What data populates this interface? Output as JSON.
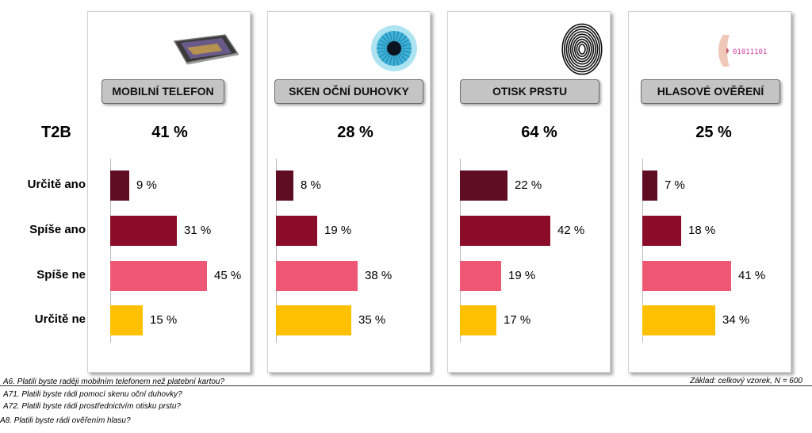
{
  "chart_data": {
    "type": "bar",
    "orientation": "horizontal",
    "row_label_t2b": "T2B",
    "categories": [
      "Určitě ano",
      "Spíše ano",
      "Spíše ne",
      "Určitě ne"
    ],
    "category_colors": [
      "#5e0d22",
      "#8a0c28",
      "#ef5874",
      "#ffc000"
    ],
    "panels": [
      {
        "title": "MOBILNÍ TELEFON",
        "icon": "smartphone-icon",
        "t2b": "41 %",
        "values": [
          9,
          31,
          45,
          15
        ]
      },
      {
        "title": "SKEN OČNÍ DUHOVKY",
        "icon": "eye-iris-icon",
        "t2b": "28 %",
        "values": [
          8,
          19,
          38,
          35
        ]
      },
      {
        "title": "OTISK PRSTU",
        "icon": "fingerprint-icon",
        "t2b": "64 %",
        "values": [
          22,
          42,
          19,
          17
        ]
      },
      {
        "title": "HLASOVÉ OVĚŘENÍ",
        "icon": "voice-binary-icon",
        "t2b": "25 %",
        "values": [
          7,
          18,
          41,
          34
        ]
      }
    ],
    "value_suffix": " %"
  },
  "notes": [
    "A6. Platili byste raději mobilním telefonem než platební kartou?",
    "A71. Platili byste rádi pomocí skenu oční duhovky?",
    "A72. Platili byste rádi prostřednictvím otisku prstu?",
    "A8. Platili byste rádi ověřením hlasu?"
  ],
  "base_note": "Základ: celkový vzorek, N = 600",
  "icon_text": {
    "voice_binary": "01011101"
  }
}
